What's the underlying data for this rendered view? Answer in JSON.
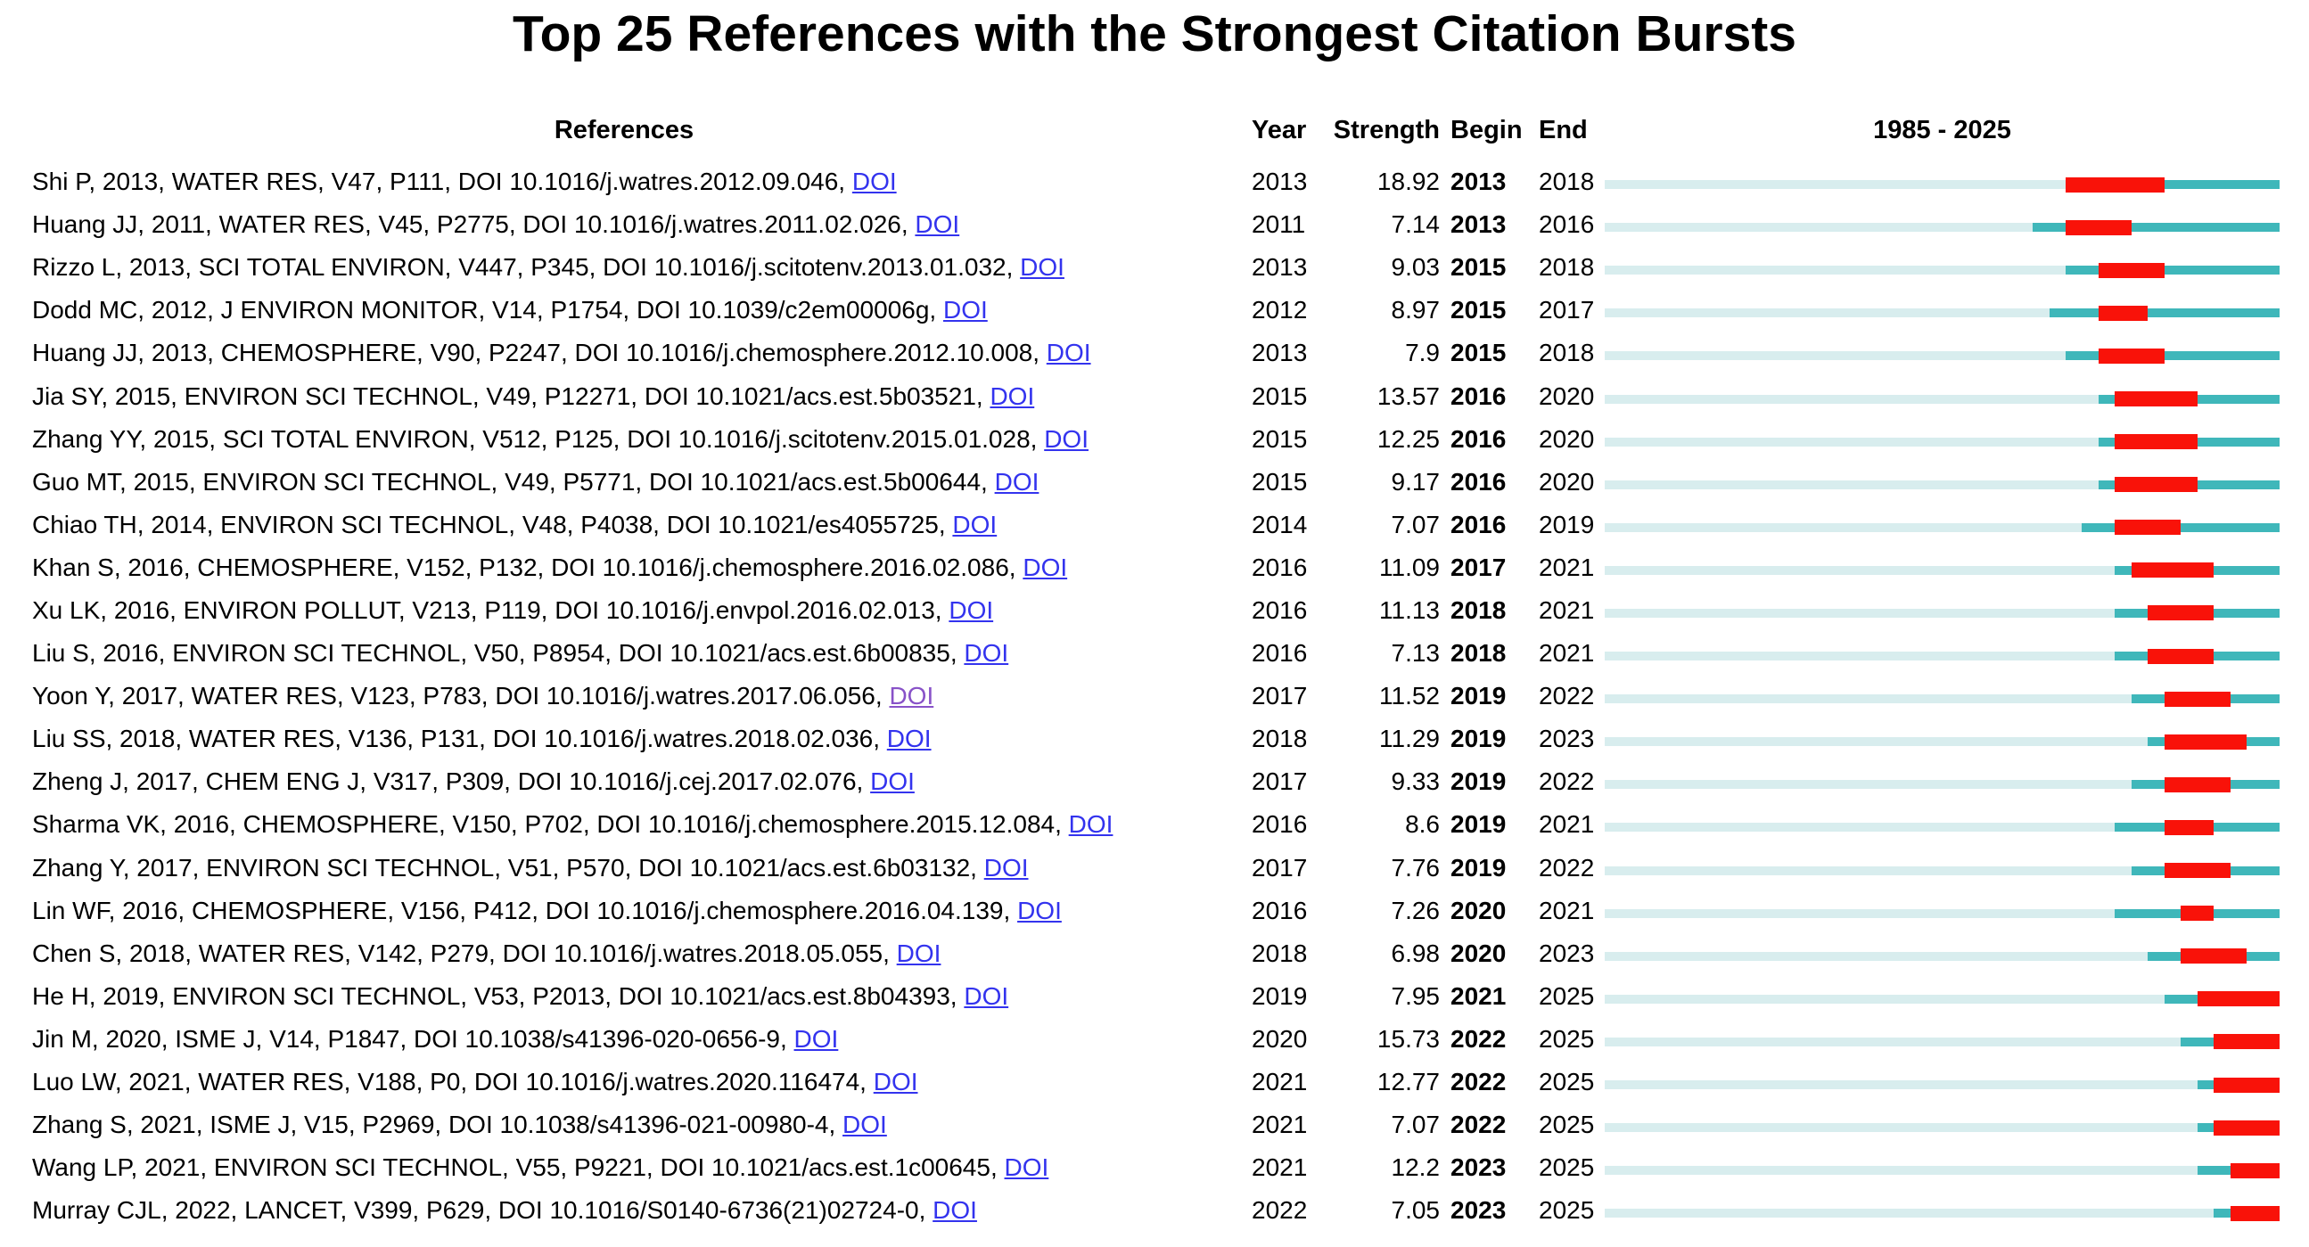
{
  "title": "Top 25 References with the Strongest Citation Bursts",
  "colors": {
    "track_pale": "#d8edee",
    "track_teal": "#3fb7ba",
    "burst_red": "#f91209",
    "link_blue": "#3333ee",
    "link_visited_purple": "#8852c8"
  },
  "chart_data": {
    "type": "table",
    "subtype": "citation-burst-timeline",
    "columns": [
      "References",
      "Year",
      "Strength",
      "Begin",
      "End"
    ],
    "timeline": {
      "label": "1985 - 2025",
      "start_year": 1985,
      "end_year": 2025
    },
    "link_label": "DOI",
    "legend": {
      "pale_segment": "years before publication",
      "teal_segment": "active years outside burst",
      "red_segment": "citation burst interval"
    },
    "rows": [
      {
        "citation": "Shi P, 2013, WATER RES, V47, P111, DOI 10.1016/j.watres.2012.09.046,",
        "year": 2013,
        "strength": "18.92",
        "begin": 2013,
        "end": 2018,
        "visited": false
      },
      {
        "citation": "Huang JJ, 2011, WATER RES, V45, P2775, DOI 10.1016/j.watres.2011.02.026,",
        "year": 2011,
        "strength": "7.14",
        "begin": 2013,
        "end": 2016,
        "visited": false
      },
      {
        "citation": "Rizzo L, 2013, SCI TOTAL ENVIRON, V447, P345, DOI 10.1016/j.scitotenv.2013.01.032,",
        "year": 2013,
        "strength": "9.03",
        "begin": 2015,
        "end": 2018,
        "visited": false
      },
      {
        "citation": "Dodd MC, 2012, J ENVIRON MONITOR, V14, P1754, DOI 10.1039/c2em00006g,",
        "year": 2012,
        "strength": "8.97",
        "begin": 2015,
        "end": 2017,
        "visited": false
      },
      {
        "citation": "Huang JJ, 2013, CHEMOSPHERE, V90, P2247, DOI 10.1016/j.chemosphere.2012.10.008,",
        "year": 2013,
        "strength": "7.9",
        "begin": 2015,
        "end": 2018,
        "visited": false
      },
      {
        "citation": "Jia SY, 2015, ENVIRON SCI TECHNOL, V49, P12271, DOI 10.1021/acs.est.5b03521,",
        "year": 2015,
        "strength": "13.57",
        "begin": 2016,
        "end": 2020,
        "visited": false
      },
      {
        "citation": "Zhang YY, 2015, SCI TOTAL ENVIRON, V512, P125, DOI 10.1016/j.scitotenv.2015.01.028,",
        "year": 2015,
        "strength": "12.25",
        "begin": 2016,
        "end": 2020,
        "visited": false
      },
      {
        "citation": "Guo MT, 2015, ENVIRON SCI TECHNOL, V49, P5771, DOI 10.1021/acs.est.5b00644,",
        "year": 2015,
        "strength": "9.17",
        "begin": 2016,
        "end": 2020,
        "visited": false
      },
      {
        "citation": "Chiao TH, 2014, ENVIRON SCI TECHNOL, V48, P4038, DOI 10.1021/es4055725,",
        "year": 2014,
        "strength": "7.07",
        "begin": 2016,
        "end": 2019,
        "visited": false
      },
      {
        "citation": "Khan S, 2016, CHEMOSPHERE, V152, P132, DOI 10.1016/j.chemosphere.2016.02.086,",
        "year": 2016,
        "strength": "11.09",
        "begin": 2017,
        "end": 2021,
        "visited": false
      },
      {
        "citation": "Xu LK, 2016, ENVIRON POLLUT, V213, P119, DOI 10.1016/j.envpol.2016.02.013,",
        "year": 2016,
        "strength": "11.13",
        "begin": 2018,
        "end": 2021,
        "visited": false
      },
      {
        "citation": "Liu S, 2016, ENVIRON SCI TECHNOL, V50, P8954, DOI 10.1021/acs.est.6b00835,",
        "year": 2016,
        "strength": "7.13",
        "begin": 2018,
        "end": 2021,
        "visited": false
      },
      {
        "citation": "Yoon Y, 2017, WATER RES, V123, P783, DOI 10.1016/j.watres.2017.06.056,",
        "year": 2017,
        "strength": "11.52",
        "begin": 2019,
        "end": 2022,
        "visited": true
      },
      {
        "citation": "Liu SS, 2018, WATER RES, V136, P131, DOI 10.1016/j.watres.2018.02.036,",
        "year": 2018,
        "strength": "11.29",
        "begin": 2019,
        "end": 2023,
        "visited": false
      },
      {
        "citation": "Zheng J, 2017, CHEM ENG J, V317, P309, DOI 10.1016/j.cej.2017.02.076,",
        "year": 2017,
        "strength": "9.33",
        "begin": 2019,
        "end": 2022,
        "visited": false
      },
      {
        "citation": "Sharma VK, 2016, CHEMOSPHERE, V150, P702, DOI 10.1016/j.chemosphere.2015.12.084,",
        "year": 2016,
        "strength": "8.6",
        "begin": 2019,
        "end": 2021,
        "visited": false
      },
      {
        "citation": "Zhang Y, 2017, ENVIRON SCI TECHNOL, V51, P570, DOI 10.1021/acs.est.6b03132,",
        "year": 2017,
        "strength": "7.76",
        "begin": 2019,
        "end": 2022,
        "visited": false
      },
      {
        "citation": "Lin WF, 2016, CHEMOSPHERE, V156, P412, DOI 10.1016/j.chemosphere.2016.04.139,",
        "year": 2016,
        "strength": "7.26",
        "begin": 2020,
        "end": 2021,
        "visited": false
      },
      {
        "citation": "Chen S, 2018, WATER RES, V142, P279, DOI 10.1016/j.watres.2018.05.055,",
        "year": 2018,
        "strength": "6.98",
        "begin": 2020,
        "end": 2023,
        "visited": false
      },
      {
        "citation": "He H, 2019, ENVIRON SCI TECHNOL, V53, P2013, DOI 10.1021/acs.est.8b04393,",
        "year": 2019,
        "strength": "7.95",
        "begin": 2021,
        "end": 2025,
        "visited": false
      },
      {
        "citation": "Jin M, 2020, ISME J, V14, P1847, DOI 10.1038/s41396-020-0656-9,",
        "year": 2020,
        "strength": "15.73",
        "begin": 2022,
        "end": 2025,
        "visited": false
      },
      {
        "citation": "Luo LW, 2021, WATER RES, V188, P0, DOI 10.1016/j.watres.2020.116474,",
        "year": 2021,
        "strength": "12.77",
        "begin": 2022,
        "end": 2025,
        "visited": false
      },
      {
        "citation": "Zhang S, 2021, ISME J, V15, P2969, DOI 10.1038/s41396-021-00980-4,",
        "year": 2021,
        "strength": "7.07",
        "begin": 2022,
        "end": 2025,
        "visited": false
      },
      {
        "citation": "Wang LP, 2021, ENVIRON SCI TECHNOL, V55, P9221, DOI 10.1021/acs.est.1c00645,",
        "year": 2021,
        "strength": "12.2",
        "begin": 2023,
        "end": 2025,
        "visited": false
      },
      {
        "citation": "Murray CJL, 2022, LANCET, V399, P629, DOI 10.1016/S0140-6736(21)02724-0,",
        "year": 2022,
        "strength": "7.05",
        "begin": 2023,
        "end": 2025,
        "visited": false
      }
    ]
  }
}
